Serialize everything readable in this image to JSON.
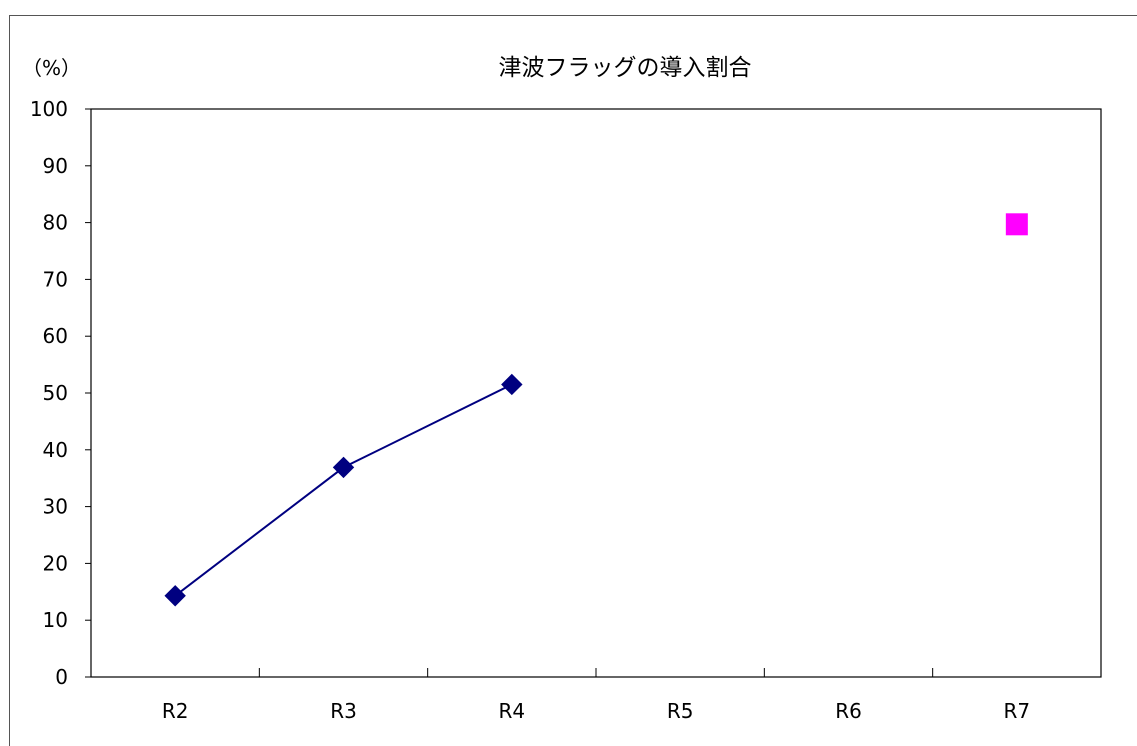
{
  "chart_data": {
    "type": "line",
    "title": "津波フラッグの導入割合",
    "unit_label": "（%）",
    "categories": [
      "R2",
      "R3",
      "R4",
      "R5",
      "R6",
      "R7"
    ],
    "ylim": [
      0,
      100
    ],
    "yticks": [
      0,
      10,
      20,
      30,
      40,
      50,
      60,
      70,
      80,
      90,
      100
    ],
    "grid": false,
    "series": [
      {
        "values": [
          14.3,
          36.9,
          51.5,
          null,
          null,
          null
        ],
        "color": "#000080",
        "marker": "diamond"
      },
      {
        "values": [
          null,
          null,
          null,
          null,
          null,
          79.7
        ],
        "color": "#ff00ff",
        "marker": "square"
      }
    ]
  }
}
